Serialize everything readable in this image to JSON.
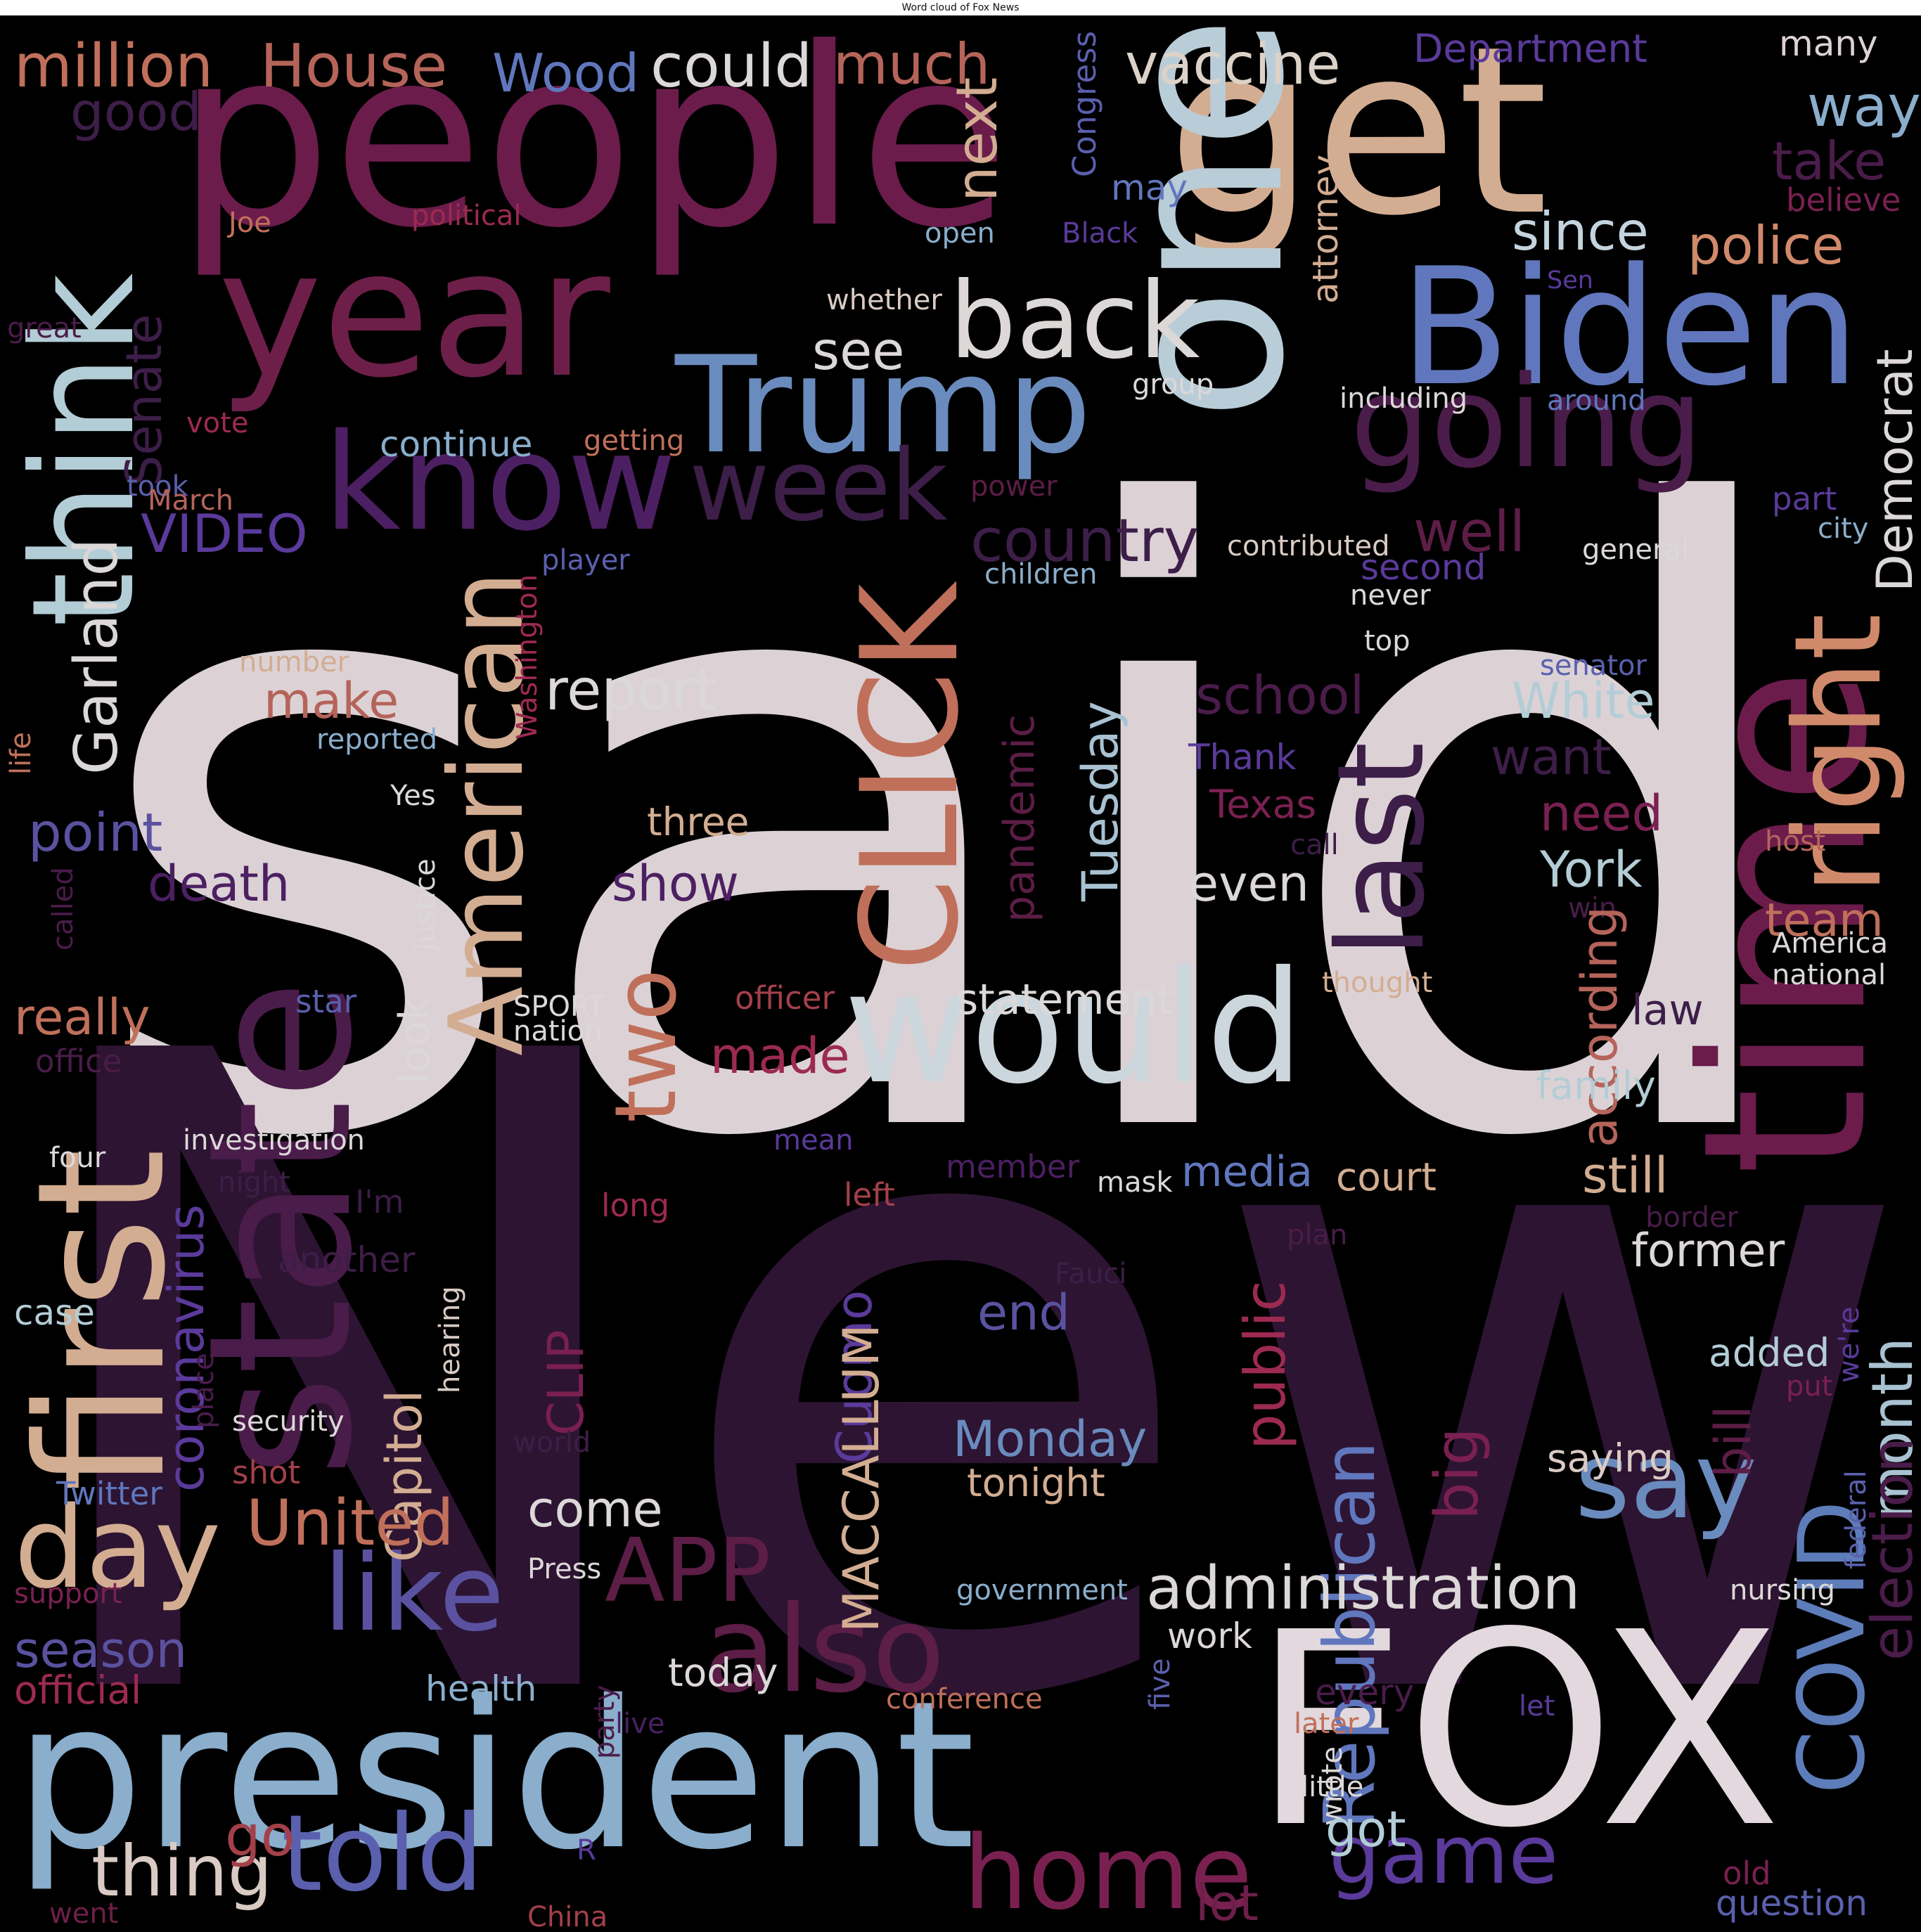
{
  "title": "Word cloud of Fox News",
  "background": "#000000",
  "words": [
    {
      "text": "said",
      "color": "#dcd2d6"
    },
    {
      "text": "New",
      "color": "#2d1432"
    },
    {
      "text": "people",
      "color": "#6b1c4b"
    },
    {
      "text": "get",
      "color": "#d3ad92"
    },
    {
      "text": "one",
      "color": "#b9cdd8"
    },
    {
      "text": "year",
      "color": "#6d1f49"
    },
    {
      "text": "Biden",
      "color": "#6077bd"
    },
    {
      "text": "Trump",
      "color": "#6a8bbd"
    },
    {
      "text": "think",
      "color": "#b3cdd6"
    },
    {
      "text": "know",
      "color": "#4c1f62"
    },
    {
      "text": "back",
      "color": "#dcd8d8"
    },
    {
      "text": "going",
      "color": "#4a1c4a"
    },
    {
      "text": "week",
      "color": "#3d1e48"
    },
    {
      "text": "time",
      "color": "#6b1c4b"
    },
    {
      "text": "would",
      "color": "#ccd6dd"
    },
    {
      "text": "state",
      "color": "#4a1c4a"
    },
    {
      "text": "first",
      "color": "#d3ad92"
    },
    {
      "text": "American",
      "color": "#d3ad92"
    },
    {
      "text": "CLICK",
      "color": "#c0705a"
    },
    {
      "text": "last",
      "color": "#3d1e48"
    },
    {
      "text": "right",
      "color": "#d08a6b"
    },
    {
      "text": "president",
      "color": "#8aaecc"
    },
    {
      "text": "FOX",
      "color": "#e2d8de"
    },
    {
      "text": "day",
      "color": "#d3ad92"
    },
    {
      "text": "like",
      "color": "#5a52a0"
    },
    {
      "text": "also",
      "color": "#5c1d46"
    },
    {
      "text": "say",
      "color": "#6a8bbd"
    },
    {
      "text": "APP",
      "color": "#5c1d46"
    },
    {
      "text": "told",
      "color": "#5a60ad"
    },
    {
      "text": "home",
      "color": "#7a2051"
    },
    {
      "text": "COVID",
      "color": "#5d7dba"
    },
    {
      "text": "game",
      "color": "#5a3a9a"
    },
    {
      "text": "Republican",
      "color": "#6077bd"
    },
    {
      "text": "thing",
      "color": "#d9cbc4"
    },
    {
      "text": "million",
      "color": "#c0705a"
    },
    {
      "text": "House",
      "color": "#b5645a"
    },
    {
      "text": "Wood",
      "color": "#6077bd"
    },
    {
      "text": "could",
      "color": "#dcd8d8"
    },
    {
      "text": "much",
      "color": "#b5645a"
    },
    {
      "text": "vaccine",
      "color": "#dcd2c8"
    },
    {
      "text": "Department",
      "color": "#5a3a9a"
    },
    {
      "text": "many",
      "color": "#dcd2d6"
    },
    {
      "text": "way",
      "color": "#8aaecc"
    },
    {
      "text": "take",
      "color": "#4a1c4a"
    },
    {
      "text": "believe",
      "color": "#7a2051"
    },
    {
      "text": "police",
      "color": "#d08a6b"
    },
    {
      "text": "since",
      "color": "#c4d4de"
    },
    {
      "text": "good",
      "color": "#3d1e48"
    },
    {
      "text": "Joe",
      "color": "#c0705a"
    },
    {
      "text": "political",
      "color": "#9c2a52"
    },
    {
      "text": "Congress",
      "color": "#5a60ad"
    },
    {
      "text": "may",
      "color": "#6077bd"
    },
    {
      "text": "open",
      "color": "#8aaecc"
    },
    {
      "text": "Black",
      "color": "#5a3a9a"
    },
    {
      "text": "Sen",
      "color": "#5a3a9a"
    },
    {
      "text": "next",
      "color": "#d3ad92"
    },
    {
      "text": "attorney",
      "color": "#d3ad92"
    },
    {
      "text": "whether",
      "color": "#d9cbc4"
    },
    {
      "text": "see",
      "color": "#dcd8d8"
    },
    {
      "text": "Democrat",
      "color": "#dcd8d8"
    },
    {
      "text": "group",
      "color": "#dcd8d8"
    },
    {
      "text": "including",
      "color": "#dcd8d8"
    },
    {
      "text": "around",
      "color": "#6077bd"
    },
    {
      "text": "great",
      "color": "#4a1c4a"
    },
    {
      "text": "vote",
      "color": "#9c2a52"
    },
    {
      "text": "Senate",
      "color": "#3d1e48"
    },
    {
      "text": "continue",
      "color": "#8aaecc"
    },
    {
      "text": "getting",
      "color": "#c0705a"
    },
    {
      "text": "took",
      "color": "#5a60ad"
    },
    {
      "text": "March",
      "color": "#b5645a"
    },
    {
      "text": "power",
      "color": "#5c1d46"
    },
    {
      "text": "VIDEO",
      "color": "#5a3a9a"
    },
    {
      "text": "country",
      "color": "#3d1e48"
    },
    {
      "text": "well",
      "color": "#5c1d46"
    },
    {
      "text": "contributed",
      "color": "#d9cbc4"
    },
    {
      "text": "second",
      "color": "#5a3a9a"
    },
    {
      "text": "general",
      "color": "#dcd8d8"
    },
    {
      "text": "part",
      "color": "#5a3a9a"
    },
    {
      "text": "city",
      "color": "#8aaecc"
    },
    {
      "text": "player",
      "color": "#5a60ad"
    },
    {
      "text": "children",
      "color": "#8aaecc"
    },
    {
      "text": "never",
      "color": "#dcd8d8"
    },
    {
      "text": "top",
      "color": "#dcd8d8"
    },
    {
      "text": "Washington",
      "color": "#9c2a52"
    },
    {
      "text": "number",
      "color": "#d3ad92"
    },
    {
      "text": "Garland",
      "color": "#dcd8d8"
    },
    {
      "text": "make",
      "color": "#b5645a"
    },
    {
      "text": "report",
      "color": "#dcd8d8"
    },
    {
      "text": "pandemic",
      "color": "#5c1d46"
    },
    {
      "text": "school",
      "color": "#4a1c4a"
    },
    {
      "text": "White",
      "color": "#b3cdd6"
    },
    {
      "text": "senator",
      "color": "#5a60ad"
    },
    {
      "text": "want",
      "color": "#3d1e48"
    },
    {
      "text": "life",
      "color": "#c0705a"
    },
    {
      "text": "reported",
      "color": "#8aaecc"
    },
    {
      "text": "Thank",
      "color": "#5a3a9a"
    },
    {
      "text": "Texas",
      "color": "#7a2051"
    },
    {
      "text": "need",
      "color": "#7a2051"
    },
    {
      "text": "call",
      "color": "#3d1e48"
    },
    {
      "text": "host",
      "color": "#b5645a"
    },
    {
      "text": "Yes",
      "color": "#dcd8d8"
    },
    {
      "text": "three",
      "color": "#d3ad92"
    },
    {
      "text": "York",
      "color": "#b3cdd6"
    },
    {
      "text": "point",
      "color": "#5a52a0"
    },
    {
      "text": "Tuesday",
      "color": "#a8c2d2"
    },
    {
      "text": "even",
      "color": "#dcd8d8"
    },
    {
      "text": "team",
      "color": "#c0705a"
    },
    {
      "text": "win",
      "color": "#4a1c4a"
    },
    {
      "text": "death",
      "color": "#4c1f62"
    },
    {
      "text": "show",
      "color": "#4c1f62"
    },
    {
      "text": "justice",
      "color": "#dcd8d8"
    },
    {
      "text": "called",
      "color": "#4a1c4a"
    },
    {
      "text": "America",
      "color": "#dcd8d8"
    },
    {
      "text": "national",
      "color": "#dcd8d8"
    },
    {
      "text": "thought",
      "color": "#d3ad92"
    },
    {
      "text": "really",
      "color": "#c0705a"
    },
    {
      "text": "star",
      "color": "#5a60ad"
    },
    {
      "text": "SPORT",
      "color": "#dcd8d8"
    },
    {
      "text": "nation",
      "color": "#dcd8d8"
    },
    {
      "text": "officer",
      "color": "#a3404a"
    },
    {
      "text": "statement",
      "color": "#dcd8d8"
    },
    {
      "text": "law",
      "color": "#3d1e48"
    },
    {
      "text": "office",
      "color": "#4a1c4a"
    },
    {
      "text": "two",
      "color": "#c0705a"
    },
    {
      "text": "made",
      "color": "#9c2a52"
    },
    {
      "text": "according",
      "color": "#b5645a"
    },
    {
      "text": "family",
      "color": "#b3cdd6"
    },
    {
      "text": "look",
      "color": "#dcd8d8"
    },
    {
      "text": "investigation",
      "color": "#dcd8d8"
    },
    {
      "text": "four",
      "color": "#dcd8d8"
    },
    {
      "text": "mean",
      "color": "#5a3a9a"
    },
    {
      "text": "member",
      "color": "#4c1f62"
    },
    {
      "text": "mask",
      "color": "#dcd8d8"
    },
    {
      "text": "media",
      "color": "#6077bd"
    },
    {
      "text": "court",
      "color": "#d3ad92"
    },
    {
      "text": "still",
      "color": "#d3ad92"
    },
    {
      "text": "night",
      "color": "#3d1e48"
    },
    {
      "text": "I'm",
      "color": "#3d1e48"
    },
    {
      "text": "long",
      "color": "#9c2a52"
    },
    {
      "text": "left",
      "color": "#a3404a"
    },
    {
      "text": "border",
      "color": "#4a1c4a"
    },
    {
      "text": "plan",
      "color": "#4a1c4a"
    },
    {
      "text": "coronavirus",
      "color": "#5a3a9a"
    },
    {
      "text": "another",
      "color": "#3d1e48"
    },
    {
      "text": "former",
      "color": "#dcd8d8"
    },
    {
      "text": "Capitol",
      "color": "#d3ad92"
    },
    {
      "text": "Cuomo",
      "color": "#5a3a9a"
    },
    {
      "text": "Fauci",
      "color": "#3d1e48"
    },
    {
      "text": "case",
      "color": "#b3cdd6"
    },
    {
      "text": "hearing",
      "color": "#d9cbc4"
    },
    {
      "text": "end",
      "color": "#5a52a0"
    },
    {
      "text": "MACCALLUM",
      "color": "#d3ad92"
    },
    {
      "text": "bill",
      "color": "#5c1d46"
    },
    {
      "text": "added",
      "color": "#b3cdd6"
    },
    {
      "text": "we're",
      "color": "#5a3a9a"
    },
    {
      "text": "put",
      "color": "#7a2051"
    },
    {
      "text": "place",
      "color": "#4a1c4a"
    },
    {
      "text": "CLIP",
      "color": "#7a2051"
    },
    {
      "text": "public",
      "color": "#9c2a52"
    },
    {
      "text": "Monday",
      "color": "#6a8bbd"
    },
    {
      "text": "security",
      "color": "#dcd8d8"
    },
    {
      "text": "world",
      "color": "#3d1e48"
    },
    {
      "text": "shot",
      "color": "#a3404a"
    },
    {
      "text": "tonight",
      "color": "#d3ad92"
    },
    {
      "text": "saying",
      "color": "#d9cbc4"
    },
    {
      "text": "month",
      "color": "#a8c2d2"
    },
    {
      "text": "federal",
      "color": "#5a60ad"
    },
    {
      "text": "Twitter",
      "color": "#6077bd"
    },
    {
      "text": "come",
      "color": "#dcd8d8"
    },
    {
      "text": "big",
      "color": "#7a2051"
    },
    {
      "text": "election",
      "color": "#4a1c4a"
    },
    {
      "text": "United",
      "color": "#c0705a"
    },
    {
      "text": "administration",
      "color": "#dcd8d8"
    },
    {
      "text": "Press",
      "color": "#dcd8d8"
    },
    {
      "text": "government",
      "color": "#8aaecc"
    },
    {
      "text": "nursing",
      "color": "#dcd8d8"
    },
    {
      "text": "support",
      "color": "#7a2051"
    },
    {
      "text": "season",
      "color": "#5a52a0"
    },
    {
      "text": "work",
      "color": "#dcd8d8"
    },
    {
      "text": "five",
      "color": "#5a60ad"
    },
    {
      "text": "today",
      "color": "#dcd8d8"
    },
    {
      "text": "official",
      "color": "#9c2a52"
    },
    {
      "text": "health",
      "color": "#8aaecc"
    },
    {
      "text": "conference",
      "color": "#c0705a"
    },
    {
      "text": "every",
      "color": "#4a1c4a"
    },
    {
      "text": "let",
      "color": "#5a3a9a"
    },
    {
      "text": "party",
      "color": "#4a1c4a"
    },
    {
      "text": "live",
      "color": "#4c1f62"
    },
    {
      "text": "later",
      "color": "#c0705a"
    },
    {
      "text": "go",
      "color": "#a3404a"
    },
    {
      "text": "little",
      "color": "#dcd8d8"
    },
    {
      "text": "wrote",
      "color": "#dcd8d8"
    },
    {
      "text": "got",
      "color": "#b3cdd6"
    },
    {
      "text": "R",
      "color": "#5a3a9a"
    },
    {
      "text": "old",
      "color": "#7a2051"
    },
    {
      "text": "lot",
      "color": "#6d1f49"
    },
    {
      "text": "question",
      "color": "#5a60ad"
    },
    {
      "text": "went",
      "color": "#6d1f49"
    },
    {
      "text": "China",
      "color": "#a3404a"
    }
  ]
}
